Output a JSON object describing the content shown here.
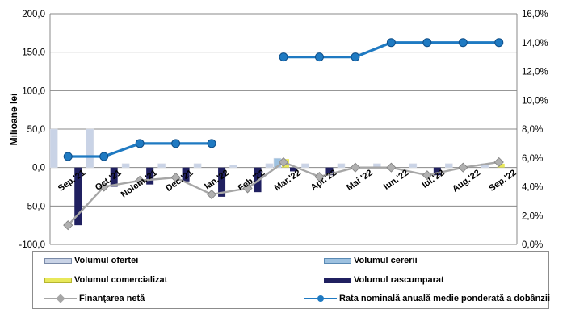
{
  "chart_data": {
    "type": "bar",
    "categories": [
      "Sep.'21",
      "Oct.'21",
      "Noiem.'21",
      "Dec.'21",
      "Ian.'22",
      "Feb.'22",
      "Mar.'22",
      "Apr.'22",
      "Mai '22",
      "Iun.'22",
      "Iul.'22",
      "Aug.'22",
      "Sep.'22"
    ],
    "ylabel": "Milioane lei",
    "ylim": [
      -100,
      200
    ],
    "y_ticks": [
      "-100,0",
      "-50,0",
      "0,0",
      "50,0",
      "100,0",
      "150,0",
      "200,0"
    ],
    "y2lim": [
      0,
      16
    ],
    "y2_ticks": [
      "0,0%",
      "2,0%",
      "4,0%",
      "6,0%",
      "8,0%",
      "10,0%",
      "12,0%",
      "14,0%",
      "16,0%"
    ],
    "grid": true,
    "legend_position": "bottom",
    "series": [
      {
        "name": "Volumul ofertei",
        "kind": "bar",
        "axis": "left",
        "color": "#c9d3e6",
        "values": [
          50,
          50,
          5,
          5,
          5,
          3,
          5,
          5,
          5,
          5,
          5,
          5,
          5
        ]
      },
      {
        "name": "Volumul cererii",
        "kind": "bar",
        "axis": "left",
        "color": "#9dc1e0",
        "values": [
          0,
          0,
          0,
          0,
          0,
          0,
          12,
          0,
          0,
          0,
          0,
          0,
          0
        ]
      },
      {
        "name": "Volumul comercializat",
        "kind": "bar",
        "axis": "left",
        "color": "#e8e85a",
        "values": [
          0,
          0,
          0,
          0,
          0,
          0,
          11,
          0,
          0,
          0,
          0,
          0,
          5
        ]
      },
      {
        "name": "Volumul rascumparat",
        "kind": "bar",
        "axis": "left",
        "color": "#202060",
        "values": [
          -75,
          -25,
          -22,
          -18,
          -38,
          -32,
          -5,
          -10,
          0,
          0,
          -10,
          0,
          0
        ]
      },
      {
        "name": "Finanţarea netă",
        "kind": "line",
        "axis": "left",
        "color": "#a6a6a6",
        "marker": "diamond",
        "values": [
          -75,
          -25,
          -17,
          -13,
          -35,
          -27,
          7,
          -12,
          0,
          0,
          -10,
          0,
          7
        ]
      },
      {
        "name": "Rata nominală anuală medie ponderată a dobânzii",
        "kind": "line",
        "axis": "right",
        "color": "#1f7ac2",
        "marker": "circle",
        "values": [
          6.1,
          6.1,
          7.0,
          7.0,
          7.0,
          null,
          13.0,
          13.0,
          13.0,
          14.0,
          14.0,
          14.0,
          14.0
        ]
      }
    ]
  }
}
